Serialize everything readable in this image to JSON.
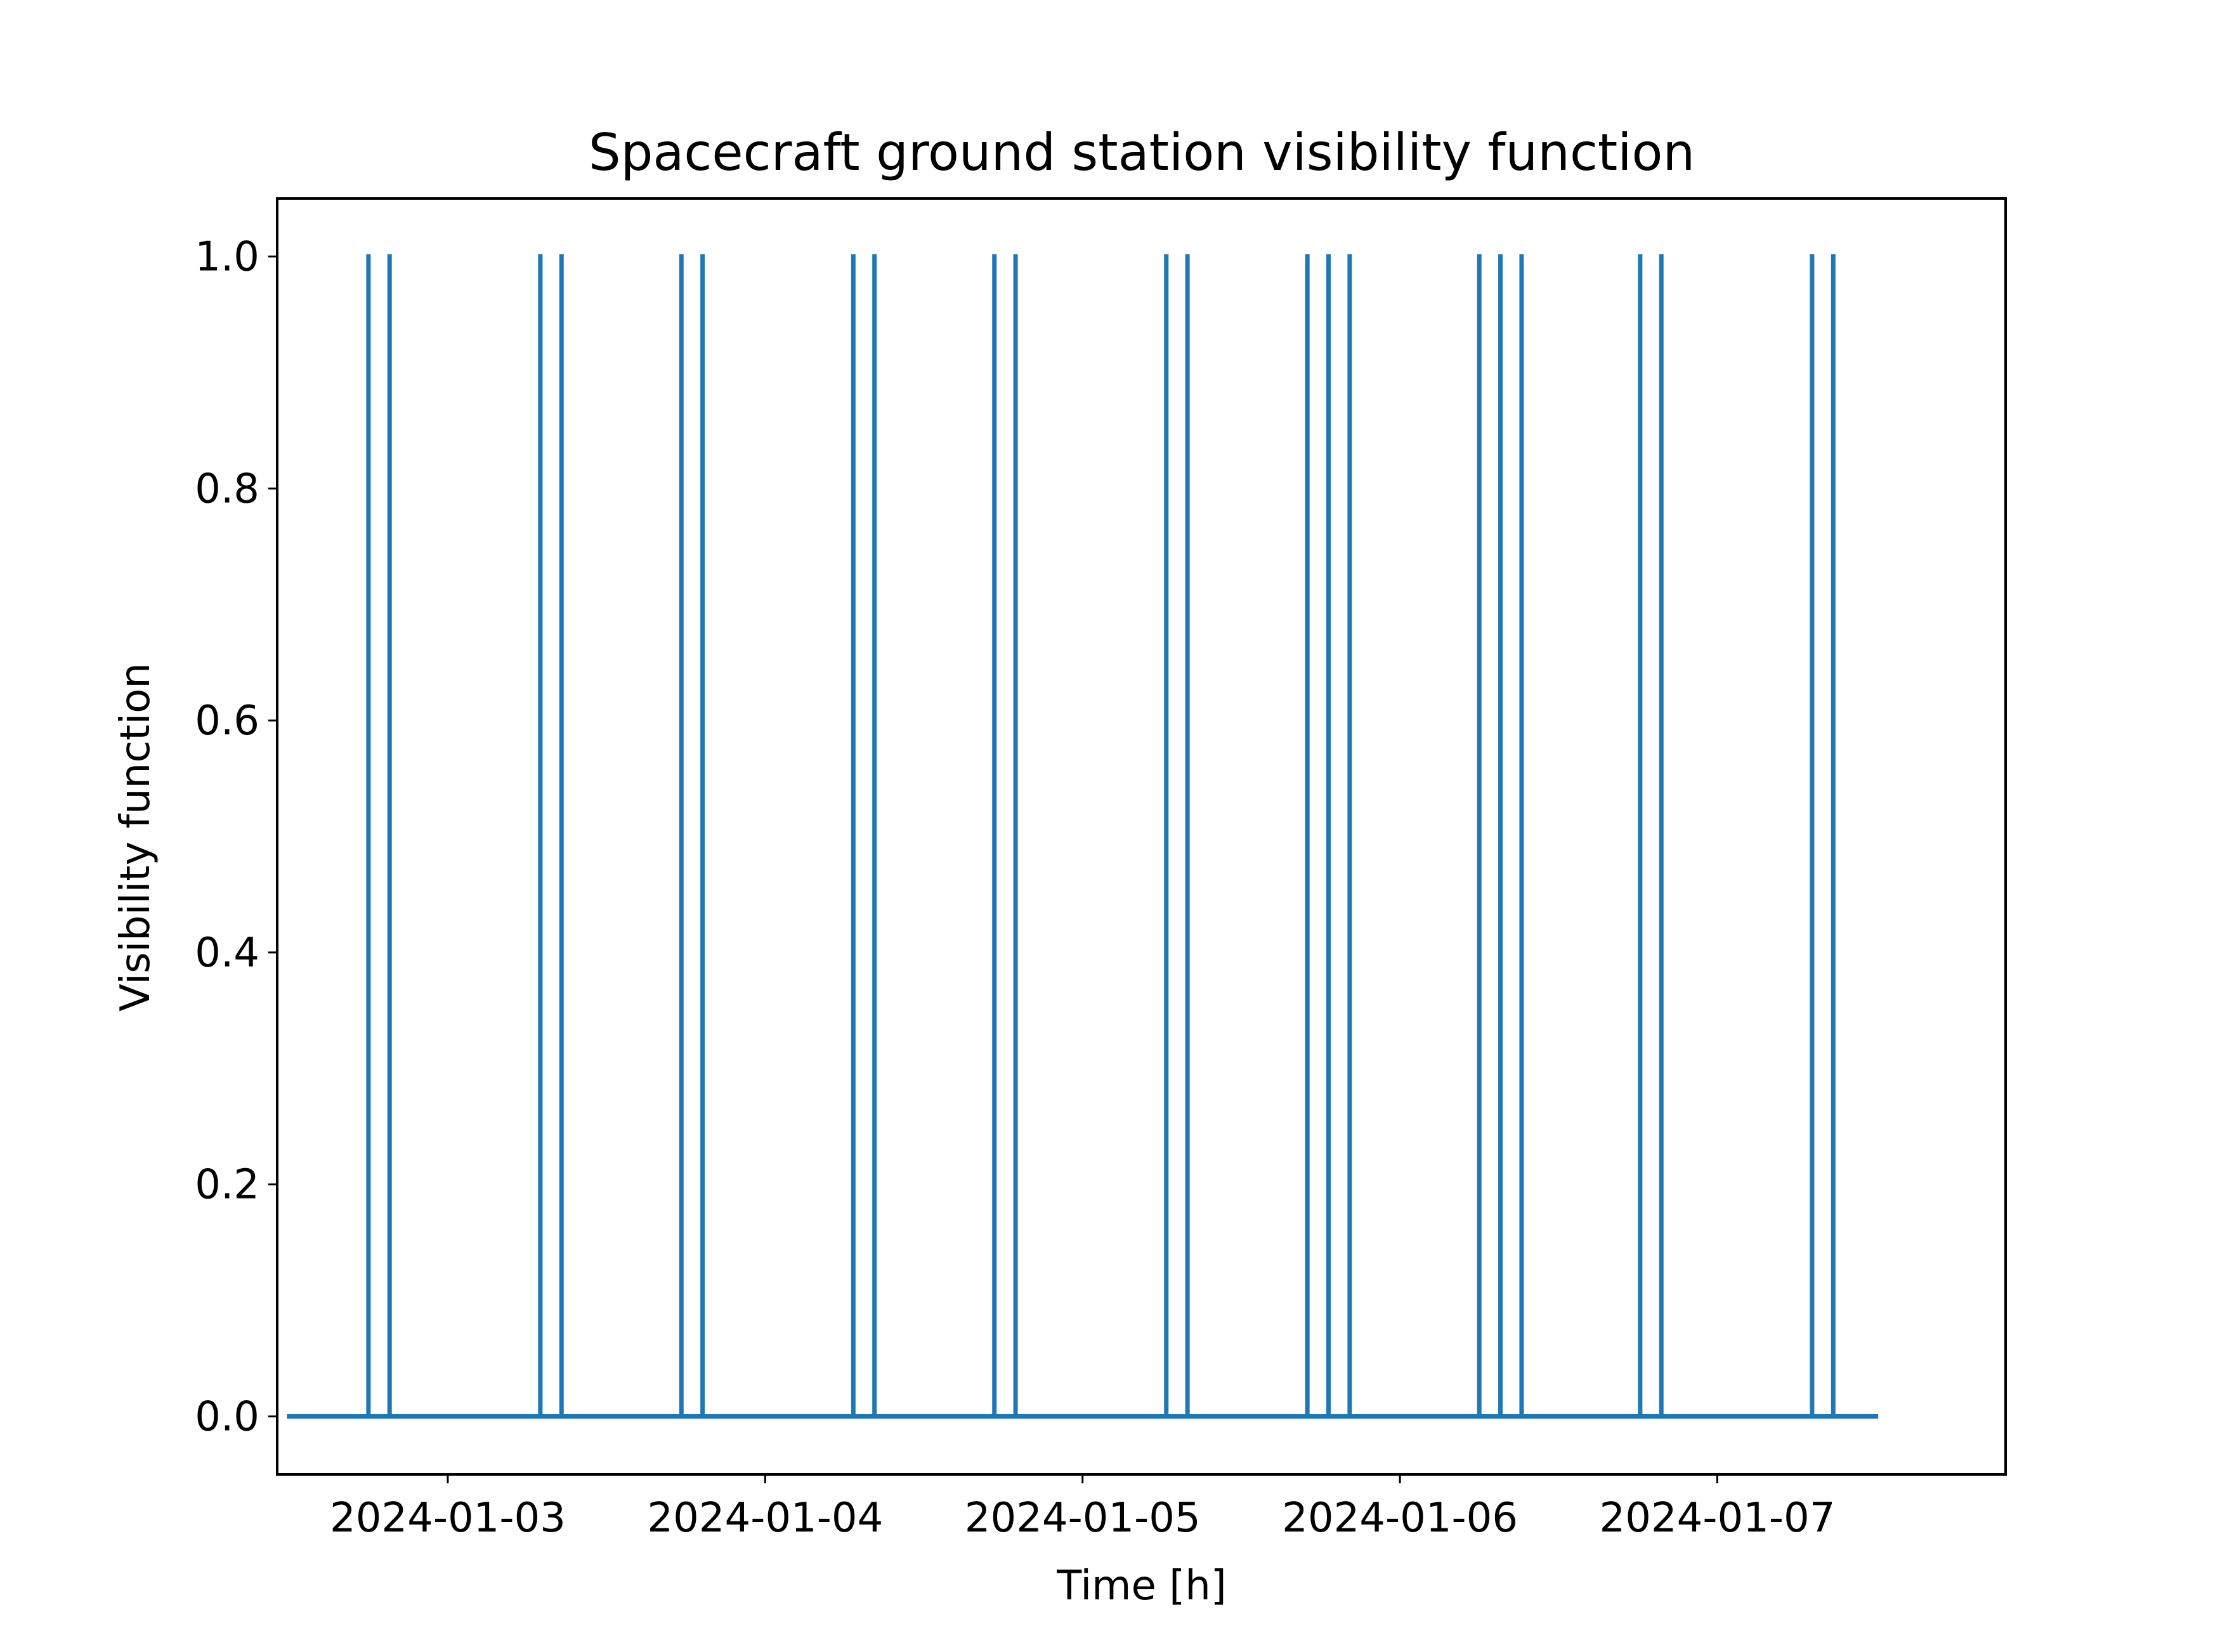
{
  "chart_data": {
    "type": "line",
    "title": "Spacecraft ground station visibility function",
    "xlabel": "Time [h]",
    "ylabel": "Visibility function",
    "xlim": [
      "2024-01-02T11:06",
      "2024-01-07T21:48"
    ],
    "ylim": [
      -0.05,
      1.05
    ],
    "x_ticks": [
      {
        "value": "2024-01-03",
        "label": "2024-01-03"
      },
      {
        "value": "2024-01-04",
        "label": "2024-01-04"
      },
      {
        "value": "2024-01-05",
        "label": "2024-01-05"
      },
      {
        "value": "2024-01-06",
        "label": "2024-01-06"
      },
      {
        "value": "2024-01-07",
        "label": "2024-01-07"
      }
    ],
    "y_ticks": [
      {
        "value": 0.0,
        "label": "0.0"
      },
      {
        "value": 0.2,
        "label": "0.2"
      },
      {
        "value": 0.4,
        "label": "0.4"
      },
      {
        "value": 0.6,
        "label": "0.6"
      },
      {
        "value": 0.8,
        "label": "0.8"
      },
      {
        "value": 1.0,
        "label": "1.0"
      }
    ],
    "grid": false,
    "legend": false,
    "series": [
      {
        "color": "#1f77b4",
        "x_range": [
          "2024-01-02T12:00",
          "2024-01-07T12:00"
        ],
        "baseline": 0,
        "spike_value": 1,
        "spikes": [
          "2024-01-02T18:00",
          "2024-01-02T19:36",
          "2024-01-03T07:00",
          "2024-01-03T08:36",
          "2024-01-03T17:40",
          "2024-01-03T19:16",
          "2024-01-04T06:40",
          "2024-01-04T08:16",
          "2024-01-04T17:20",
          "2024-01-04T18:56",
          "2024-01-05T06:20",
          "2024-01-05T07:56",
          "2024-01-05T17:00",
          "2024-01-05T18:36",
          "2024-01-05T20:12",
          "2024-01-06T06:00",
          "2024-01-06T07:36",
          "2024-01-06T09:12",
          "2024-01-06T18:10",
          "2024-01-06T19:46",
          "2024-01-07T07:10",
          "2024-01-07T08:46"
        ]
      }
    ]
  }
}
